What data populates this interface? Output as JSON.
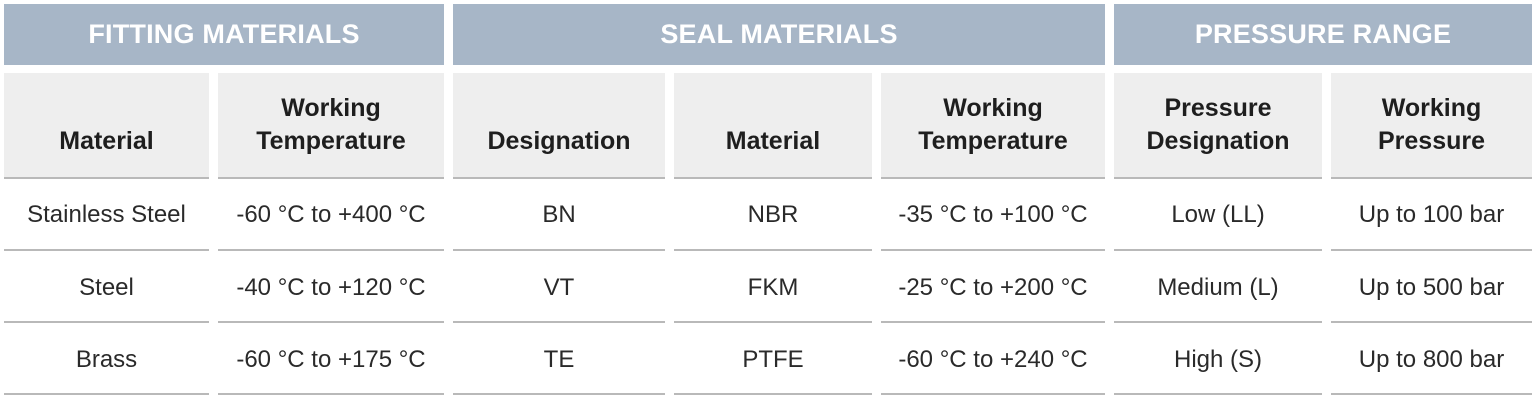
{
  "groups": {
    "fitting": "FITTING MATERIALS",
    "seal": "SEAL MATERIALS",
    "pressure": "PRESSURE RANGE"
  },
  "columns": [
    {
      "line1": "",
      "line2": "Material"
    },
    {
      "line1": "Working",
      "line2": "Temperature"
    },
    {
      "line1": "",
      "line2": "Designation"
    },
    {
      "line1": "",
      "line2": "Material"
    },
    {
      "line1": "Working",
      "line2": "Temperature"
    },
    {
      "line1": "Pressure",
      "line2": "Designation"
    },
    {
      "line1": "Working",
      "line2": "Pressure"
    }
  ],
  "rows": [
    [
      "Stainless Steel",
      "-60 °C to +400 °C",
      "BN",
      "NBR",
      "-35 °C to +100 °C",
      "Low (LL)",
      "Up to 100 bar"
    ],
    [
      "Steel",
      "-40 °C to +120 °C",
      "VT",
      "FKM",
      "-25 °C to +200 °C",
      "Medium (L)",
      "Up to 500 bar"
    ],
    [
      "Brass",
      "-60 °C to +175 °C",
      "TE",
      "PTFE",
      "-60 °C to +240 °C",
      "High (S)",
      "Up to 800 bar"
    ]
  ]
}
